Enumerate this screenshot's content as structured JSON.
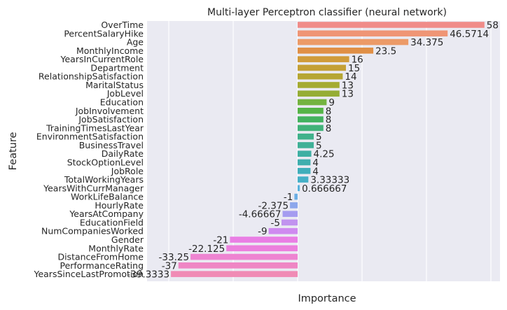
{
  "chart_data": {
    "type": "bar",
    "orientation": "horizontal",
    "title": "Multi-layer Perceptron classifier (neural network)",
    "xlabel": "Importance",
    "ylabel": "Feature",
    "xlim": [
      -40,
      62
    ],
    "grid": true,
    "categories": [
      "OverTime",
      "PercentSalaryHike",
      "Age",
      "MonthlyIncome",
      "YearsInCurrentRole",
      "Department",
      "RelationshipSatisfaction",
      "MaritalStatus",
      "JobLevel",
      "Education",
      "JobInvolvement",
      "JobSatisfaction",
      "TrainingTimesLastYear",
      "EnvironmentSatisfaction",
      "BusinessTravel",
      "DailyRate",
      "StockOptionLevel",
      "JobRole",
      "TotalWorkingYears",
      "YearsWithCurrManager",
      "WorkLifeBalance",
      "HourlyRate",
      "YearsAtCompany",
      "EducationField",
      "NumCompaniesWorked",
      "Gender",
      "MonthlyRate",
      "DistanceFromHome",
      "PerformanceRating",
      "YearsSinceLastPromotion"
    ],
    "values": [
      58,
      46.5714,
      34.375,
      23.5,
      16,
      15,
      14,
      13,
      13,
      9,
      8,
      8,
      8,
      5,
      5,
      4.25,
      4,
      4,
      3.33333,
      0.666667,
      -1,
      -2.375,
      -4.66667,
      -5,
      -9,
      -21,
      -22.125,
      -33.25,
      -37,
      -39.3333
    ],
    "value_labels": [
      "58",
      "46.5714",
      "34.375",
      "23.5",
      "16",
      "15",
      "14",
      "13",
      "13",
      "9",
      "8",
      "8",
      "8",
      "5",
      "5",
      "4.25",
      "4",
      "4",
      "3.33333",
      "0.666667",
      "-1",
      "-2.375",
      "-4.66667",
      "-5",
      "-9",
      "-21",
      "-22.125",
      "-33.25",
      "-37",
      "-39.3333"
    ],
    "colors": [
      "#f08c89",
      "#ef9575",
      "#ec9a67",
      "#e08f46",
      "#d09b3a",
      "#c4a036",
      "#b6a633",
      "#a5ab31",
      "#95ad35",
      "#74b340",
      "#55b447",
      "#43b25f",
      "#42b279",
      "#40b18b",
      "#3fb097",
      "#3eafa3",
      "#3eaeae",
      "#3faebb",
      "#45b0c7",
      "#58b2dc",
      "#6aaee4",
      "#8da7ec",
      "#a59cf0",
      "#c193ef",
      "#cf8af0",
      "#e97ee4",
      "#ec80dd",
      "#ee84d1",
      "#ef86c4",
      "#f08bb5"
    ]
  }
}
